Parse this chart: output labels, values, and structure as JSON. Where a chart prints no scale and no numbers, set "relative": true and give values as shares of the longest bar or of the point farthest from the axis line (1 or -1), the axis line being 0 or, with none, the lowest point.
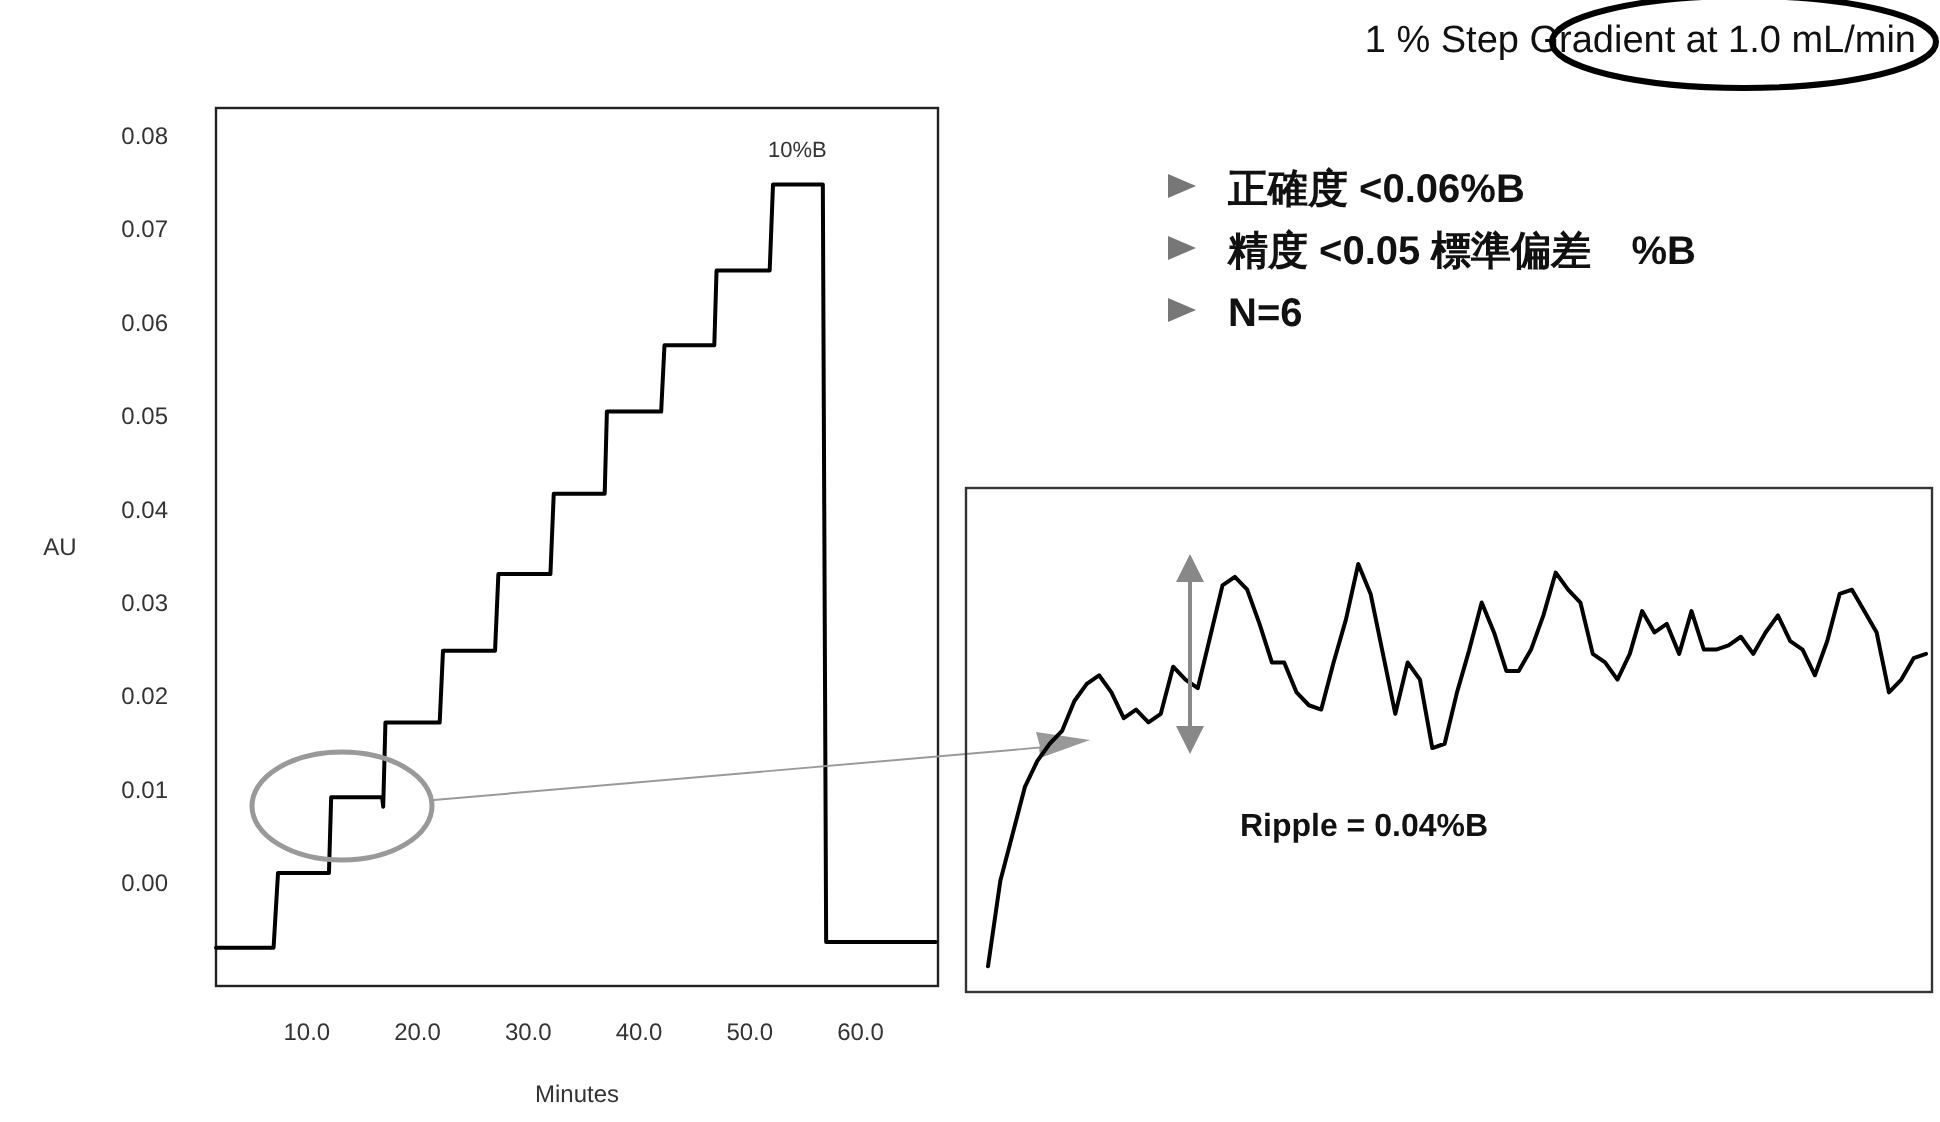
{
  "chart_data": [
    {
      "type": "line",
      "xlabel": "Minutes",
      "ylabel": "AU",
      "xlim": [
        1.8,
        67
      ],
      "ylim": [
        -0.011,
        0.083
      ],
      "xticks": [
        {
          "value": 10,
          "label": "10.0"
        },
        {
          "value": 20,
          "label": "20.0"
        },
        {
          "value": 30,
          "label": "30.0"
        },
        {
          "value": 40,
          "label": "40.0"
        },
        {
          "value": 50,
          "label": "50.0"
        },
        {
          "value": 60,
          "label": "60.0"
        }
      ],
      "yticks": [
        {
          "value": 0,
          "label": "0.00"
        },
        {
          "value": 0.01,
          "label": "0.01"
        },
        {
          "value": 0.02,
          "label": "0.02"
        },
        {
          "value": 0.03,
          "label": "0.03"
        },
        {
          "value": 0.04,
          "label": "0.04"
        },
        {
          "value": 0.05,
          "label": "0.05"
        },
        {
          "value": 0.06,
          "label": "0.06"
        },
        {
          "value": 0.07,
          "label": "0.07"
        },
        {
          "value": 0.08,
          "label": "0.08"
        }
      ],
      "x": [
        1.8,
        7.0,
        7.4,
        12.0,
        12.2,
        16.8,
        16.9,
        17.1,
        22.0,
        22.3,
        27.0,
        27.3,
        32.0,
        32.3,
        36.9,
        37.1,
        42.0,
        42.3,
        46.8,
        47.0,
        51.8,
        52.1,
        56.6,
        56.9,
        66.8
      ],
      "series": [
        {
          "color": "#000000",
          "values": [
            -0.0069,
            -0.0069,
            0.0011,
            0.0011,
            0.0092,
            0.0092,
            0.0082,
            0.0172,
            0.0172,
            0.0249,
            0.0249,
            0.0331,
            0.0331,
            0.0417,
            0.0417,
            0.0505,
            0.0505,
            0.0576,
            0.0576,
            0.0656,
            0.0656,
            0.0748,
            0.0748,
            -0.0063,
            -0.0063
          ]
        }
      ],
      "annotations": [
        {
          "text": "10%B",
          "x": 54.3,
          "y": 0.0748
        }
      ],
      "line_style": "solid",
      "marker": "none"
    },
    {
      "type": "line",
      "relative": true,
      "categories": [
        null,
        null,
        null,
        null,
        null,
        null,
        null,
        null,
        null,
        null,
        null,
        null,
        null,
        null,
        null,
        null,
        null,
        null,
        null,
        null,
        null,
        null,
        null,
        null,
        null,
        null,
        null,
        null,
        null,
        null,
        null,
        null,
        null,
        null,
        null,
        null,
        null,
        null,
        null,
        null,
        null,
        null,
        null,
        null,
        null,
        null,
        null,
        null,
        null,
        null,
        null,
        null,
        null,
        null,
        null,
        null,
        null,
        null,
        null,
        null,
        null,
        null,
        null,
        null,
        null,
        null,
        null,
        null,
        null,
        null,
        null,
        null,
        null,
        null,
        null,
        null,
        null
      ],
      "series": [
        {
          "color": "#000000",
          "values": [
            0.06,
            0.26,
            0.37,
            0.48,
            0.54,
            0.58,
            0.61,
            0.68,
            0.72,
            0.74,
            0.7,
            0.64,
            0.66,
            0.63,
            0.65,
            0.76,
            0.73,
            0.71,
            0.83,
            0.95,
            0.97,
            0.94,
            0.86,
            0.77,
            0.77,
            0.7,
            0.67,
            0.66,
            0.77,
            0.87,
            1,
            0.93,
            0.79,
            0.65,
            0.77,
            0.73,
            0.57,
            0.58,
            0.7,
            0.8,
            0.91,
            0.84,
            0.75,
            0.75,
            0.8,
            0.88,
            0.98,
            0.94,
            0.91,
            0.79,
            0.77,
            0.73,
            0.79,
            0.89,
            0.84,
            0.86,
            0.79,
            0.89,
            0.8,
            0.8,
            0.81,
            0.83,
            0.79,
            0.84,
            0.88,
            0.82,
            0.8,
            0.74,
            0.82,
            0.93,
            0.94,
            0.89,
            0.84,
            0.7,
            0.73,
            0.78,
            0.79
          ]
        }
      ],
      "annotations": [
        "Ripple = 0.04%B"
      ]
    },
    {
      "type": "other",
      "title": "1 % Step Gradient at 1.0 mL/min",
      "annotations": [
        "正確度 <0.06%B",
        "精度 <0.05 標準偏差　%B",
        "N=6"
      ]
    }
  ]
}
